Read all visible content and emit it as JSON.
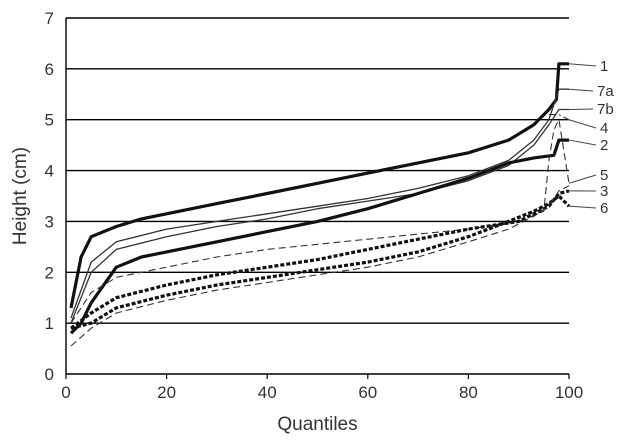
{
  "chart_data": {
    "type": "line",
    "title": "",
    "xlabel": "Quantiles",
    "ylabel": "Height (cm)",
    "xlim": [
      0,
      100
    ],
    "ylim": [
      0,
      7
    ],
    "xticks": [
      0,
      20,
      40,
      60,
      80,
      100
    ],
    "yticks": [
      0,
      1,
      2,
      3,
      4,
      5,
      6,
      7
    ],
    "grid": "horizontal",
    "legend": "labels at right end of lines",
    "series": [
      {
        "label": "1",
        "style": "solid-thick",
        "color": "#111111",
        "points": [
          [
            1,
            1.3
          ],
          [
            3,
            2.3
          ],
          [
            5,
            2.7
          ],
          [
            10,
            2.9
          ],
          [
            15,
            3.05
          ],
          [
            20,
            3.15
          ],
          [
            30,
            3.35
          ],
          [
            40,
            3.55
          ],
          [
            50,
            3.75
          ],
          [
            60,
            3.95
          ],
          [
            70,
            4.15
          ],
          [
            80,
            4.35
          ],
          [
            88,
            4.6
          ],
          [
            93,
            4.9
          ],
          [
            96,
            5.2
          ],
          [
            97.5,
            5.4
          ],
          [
            98,
            6.1
          ],
          [
            100,
            6.1
          ]
        ]
      },
      {
        "label": "7a",
        "style": "solid-thin",
        "color": "#333333",
        "points": [
          [
            1,
            1.1
          ],
          [
            5,
            2.2
          ],
          [
            10,
            2.6
          ],
          [
            20,
            2.85
          ],
          [
            30,
            3.0
          ],
          [
            40,
            3.15
          ],
          [
            50,
            3.3
          ],
          [
            60,
            3.45
          ],
          [
            70,
            3.65
          ],
          [
            80,
            3.9
          ],
          [
            88,
            4.2
          ],
          [
            93,
            4.6
          ],
          [
            96,
            5.0
          ],
          [
            98,
            5.6
          ],
          [
            100,
            5.6
          ]
        ]
      },
      {
        "label": "7b",
        "style": "solid-thin",
        "color": "#333333",
        "points": [
          [
            1,
            1.0
          ],
          [
            5,
            2.0
          ],
          [
            10,
            2.45
          ],
          [
            20,
            2.7
          ],
          [
            30,
            2.9
          ],
          [
            40,
            3.05
          ],
          [
            50,
            3.25
          ],
          [
            60,
            3.4
          ],
          [
            70,
            3.55
          ],
          [
            80,
            3.8
          ],
          [
            88,
            4.1
          ],
          [
            93,
            4.5
          ],
          [
            96,
            4.9
          ],
          [
            98,
            5.2
          ],
          [
            100,
            5.2
          ]
        ]
      },
      {
        "label": "4",
        "style": "dash-dot-thin",
        "color": "#333333",
        "points": [
          [
            96,
            5.1
          ],
          [
            98,
            5.1
          ],
          [
            100,
            5.0
          ]
        ]
      },
      {
        "label": "2",
        "style": "solid-thick",
        "color": "#111111",
        "points": [
          [
            1,
            0.8
          ],
          [
            3,
            1.0
          ],
          [
            5,
            1.4
          ],
          [
            10,
            2.1
          ],
          [
            15,
            2.3
          ],
          [
            20,
            2.4
          ],
          [
            30,
            2.6
          ],
          [
            40,
            2.8
          ],
          [
            50,
            3.0
          ],
          [
            60,
            3.25
          ],
          [
            70,
            3.55
          ],
          [
            80,
            3.85
          ],
          [
            88,
            4.15
          ],
          [
            93,
            4.25
          ],
          [
            97,
            4.3
          ],
          [
            98,
            4.6
          ],
          [
            100,
            4.6
          ]
        ]
      },
      {
        "label": "5",
        "style": "dashed-thin",
        "color": "#333333",
        "points": [
          [
            1,
            1.0
          ],
          [
            5,
            1.6
          ],
          [
            10,
            1.9
          ],
          [
            20,
            2.1
          ],
          [
            30,
            2.3
          ],
          [
            40,
            2.45
          ],
          [
            50,
            2.55
          ],
          [
            60,
            2.65
          ],
          [
            70,
            2.75
          ],
          [
            80,
            2.85
          ],
          [
            90,
            3.0
          ],
          [
            95,
            3.2
          ],
          [
            96,
            4.2
          ],
          [
            97,
            4.8
          ],
          [
            98,
            5.0
          ],
          [
            100,
            3.75
          ]
        ]
      },
      {
        "label": "3",
        "style": "dotted-thick",
        "color": "#111111",
        "points": [
          [
            1,
            0.9
          ],
          [
            5,
            1.2
          ],
          [
            10,
            1.5
          ],
          [
            20,
            1.75
          ],
          [
            30,
            1.95
          ],
          [
            40,
            2.1
          ],
          [
            50,
            2.25
          ],
          [
            60,
            2.45
          ],
          [
            70,
            2.65
          ],
          [
            80,
            2.85
          ],
          [
            90,
            3.0
          ],
          [
            96,
            3.3
          ],
          [
            98,
            3.55
          ],
          [
            100,
            3.6
          ]
        ]
      },
      {
        "label": "6",
        "style": "dotted-thick",
        "color": "#111111",
        "points": [
          [
            1,
            0.9
          ],
          [
            5,
            1.0
          ],
          [
            10,
            1.3
          ],
          [
            20,
            1.55
          ],
          [
            30,
            1.75
          ],
          [
            40,
            1.9
          ],
          [
            50,
            2.05
          ],
          [
            60,
            2.2
          ],
          [
            70,
            2.4
          ],
          [
            80,
            2.7
          ],
          [
            88,
            3.0
          ],
          [
            93,
            3.2
          ],
          [
            96,
            3.35
          ],
          [
            98,
            3.5
          ],
          [
            100,
            3.3
          ]
        ]
      },
      {
        "label": "",
        "style": "dashed-thin",
        "color": "#333333",
        "points": [
          [
            1,
            0.55
          ],
          [
            5,
            0.9
          ],
          [
            10,
            1.2
          ],
          [
            20,
            1.45
          ],
          [
            30,
            1.65
          ],
          [
            40,
            1.8
          ],
          [
            50,
            1.95
          ],
          [
            60,
            2.1
          ],
          [
            70,
            2.3
          ],
          [
            80,
            2.6
          ],
          [
            88,
            2.85
          ],
          [
            93,
            3.1
          ],
          [
            96,
            3.3
          ],
          [
            98,
            3.6
          ],
          [
            100,
            3.7
          ]
        ]
      }
    ]
  }
}
